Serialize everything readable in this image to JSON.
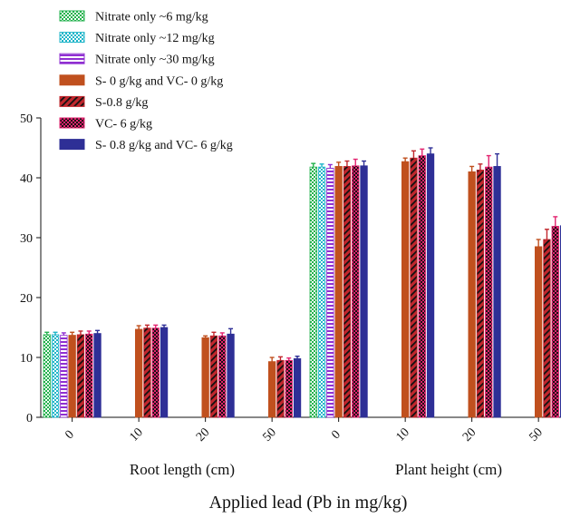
{
  "chart_data": {
    "type": "bar",
    "title": "",
    "xlabel": "Applied lead (Pb in mg/kg)",
    "ylabel": "",
    "ylim": [
      0,
      50
    ],
    "yticks": [
      0,
      10,
      20,
      30,
      40,
      50
    ],
    "groups": [
      {
        "name": "Root length (cm)",
        "categories": [
          "0",
          "10",
          "20",
          "50"
        ]
      },
      {
        "name": "Plant height (cm)",
        "categories": [
          "0",
          "10",
          "20",
          "50"
        ]
      }
    ],
    "legend_position": "top-left",
    "series": [
      {
        "name": "Nitrate only ~6 mg/kg",
        "color": "#22b14c",
        "pattern": "checker",
        "values": [
          13.8,
          null,
          null,
          null,
          41.8,
          null,
          null,
          null
        ],
        "errors": [
          0.4,
          null,
          null,
          null,
          0.6,
          null,
          null,
          null
        ]
      },
      {
        "name": "Nitrate only ~12 mg/kg",
        "color": "#1fb5c9",
        "pattern": "checker",
        "values": [
          13.8,
          null,
          null,
          null,
          41.8,
          null,
          null,
          null
        ],
        "errors": [
          0.4,
          null,
          null,
          null,
          0.5,
          null,
          null,
          null
        ]
      },
      {
        "name": "Nitrate only ~30 mg/kg",
        "color": "#8f2fd1",
        "pattern": "hstripe",
        "values": [
          13.7,
          null,
          null,
          null,
          41.6,
          null,
          null,
          null
        ],
        "errors": [
          0.4,
          null,
          null,
          null,
          0.6,
          null,
          null,
          null
        ]
      },
      {
        "name": "S- 0 g/kg and VC- 0 g/kg",
        "color": "#c0501e",
        "pattern": "solid",
        "values": [
          13.7,
          14.7,
          13.3,
          9.3,
          41.9,
          42.7,
          41.0,
          28.5
        ],
        "errors": [
          0.5,
          0.6,
          0.3,
          0.7,
          0.7,
          0.6,
          0.9,
          1.2
        ]
      },
      {
        "name": "S-0.8 g/kg",
        "color": "#c1272d",
        "pattern": "diag",
        "values": [
          13.8,
          14.9,
          13.6,
          9.5,
          41.9,
          43.3,
          41.3,
          29.7
        ],
        "errors": [
          0.6,
          0.5,
          0.6,
          0.6,
          0.9,
          1.2,
          1.0,
          1.7
        ]
      },
      {
        "name": "VC- 6 g/kg",
        "color": "#e3236f",
        "pattern": "checker",
        "values": [
          13.9,
          14.9,
          13.6,
          9.5,
          42.0,
          43.7,
          41.8,
          31.9
        ],
        "errors": [
          0.5,
          0.5,
          0.5,
          0.4,
          1.1,
          1.1,
          1.9,
          1.6
        ]
      },
      {
        "name": "S- 0.8 g/kg and VC- 6 g/kg",
        "color": "#2e2f96",
        "pattern": "solid",
        "values": [
          14.0,
          15.0,
          13.9,
          9.8,
          42.0,
          44.0,
          41.9,
          32.0
        ],
        "errors": [
          0.5,
          0.4,
          0.9,
          0.4,
          0.8,
          1.0,
          2.1,
          1.3
        ]
      }
    ]
  }
}
